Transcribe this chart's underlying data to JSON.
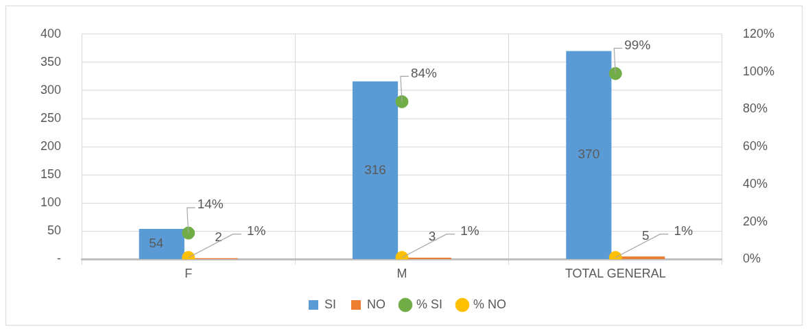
{
  "chart_data": {
    "type": "bar",
    "categories": [
      "F",
      "M",
      "TOTAL GENERAL"
    ],
    "series": [
      {
        "name": "SI",
        "color": "#5b9bd5",
        "values": [
          54,
          316,
          370
        ],
        "value_labels": [
          "54",
          "316",
          "370"
        ]
      },
      {
        "name": "NO",
        "color": "#ed7d31",
        "values": [
          2,
          3,
          5
        ],
        "value_labels": [
          "2",
          "3",
          "5"
        ]
      },
      {
        "name": "% SI",
        "type": "scatter",
        "axis": "y2",
        "color": "#70ad47",
        "values": [
          14,
          84,
          99
        ],
        "value_labels": [
          "14%",
          "84%",
          "99%"
        ]
      },
      {
        "name": "% NO",
        "type": "scatter",
        "axis": "y2",
        "color": "#ffc000",
        "values": [
          1,
          1,
          1
        ],
        "value_labels": [
          "1%",
          "1%",
          "1%"
        ]
      }
    ],
    "ylim": [
      0,
      400
    ],
    "yticks": [
      {
        "value": 0,
        "label": "-"
      },
      50,
      100,
      150,
      200,
      250,
      300,
      350,
      400
    ],
    "y2lim": [
      0,
      120
    ],
    "y2ticks": [
      {
        "value": 0,
        "label": "0%"
      },
      {
        "value": 20,
        "label": "20%"
      },
      {
        "value": 40,
        "label": "40%"
      },
      {
        "value": 60,
        "label": "60%"
      },
      {
        "value": 80,
        "label": "80%"
      },
      {
        "value": 100,
        "label": "100%"
      },
      {
        "value": 120,
        "label": "120%"
      }
    ],
    "grid": true,
    "legend": "bottom",
    "marker": "circle"
  }
}
